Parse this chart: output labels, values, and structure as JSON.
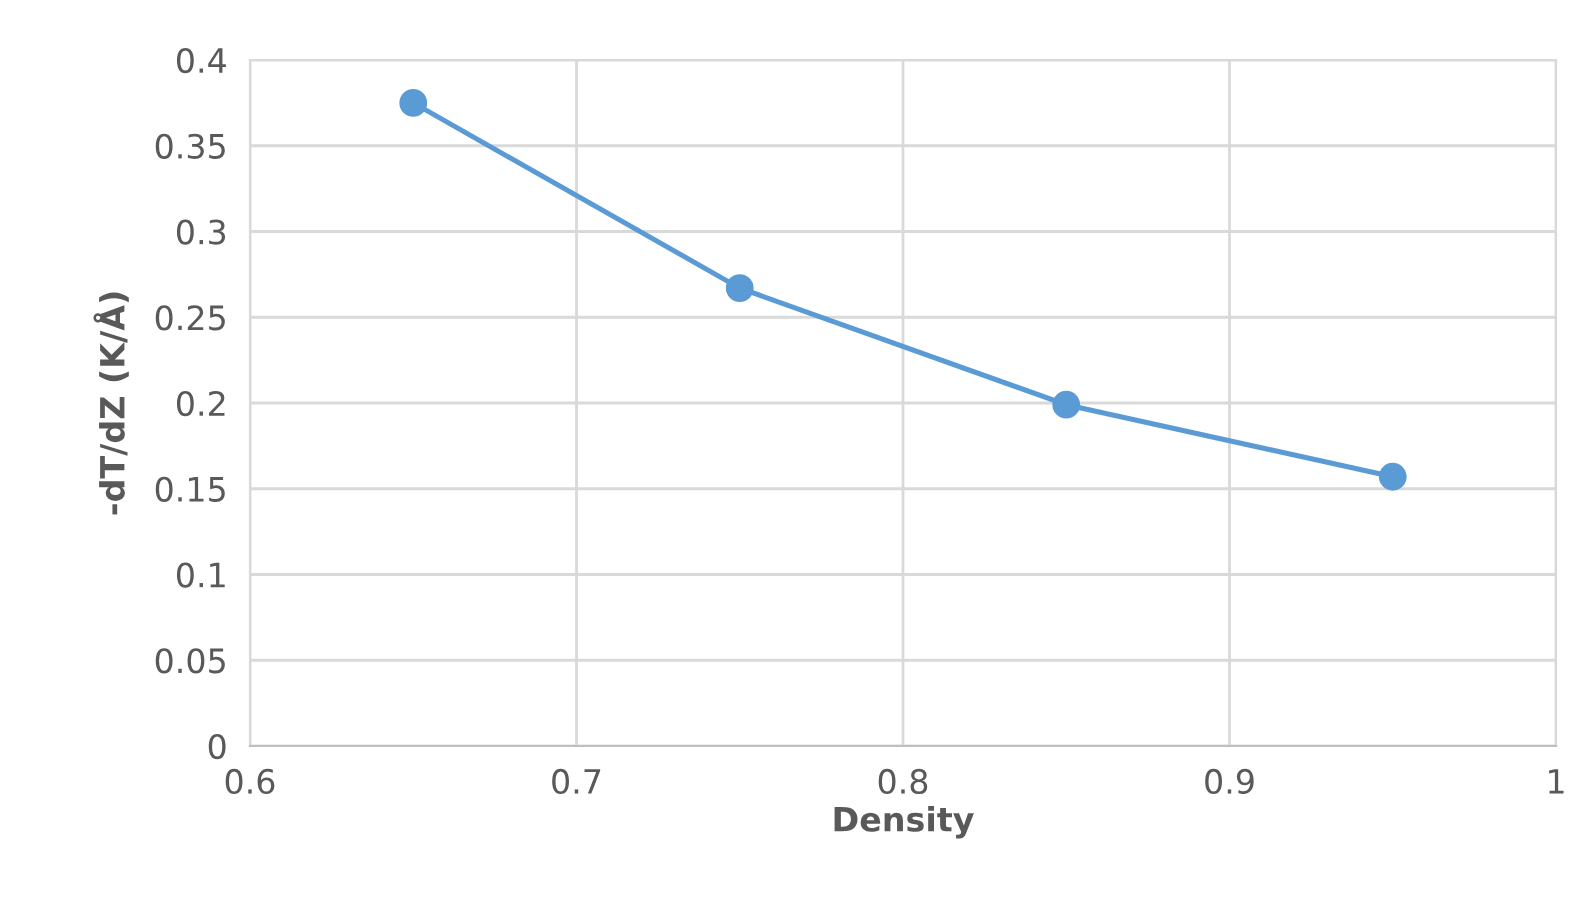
{
  "chart_data": {
    "type": "line",
    "xlabel": "Density",
    "ylabel": "-dT/dZ (K/Å)",
    "x": [
      0.65,
      0.75,
      0.85,
      0.95
    ],
    "series": [
      {
        "color": "#5b9bd5",
        "values": [
          0.375,
          0.267,
          0.199,
          0.157
        ]
      }
    ],
    "xlim": [
      0.6,
      1
    ],
    "xticks": [
      0.6,
      0.7,
      0.8,
      0.9,
      1
    ],
    "ylim": [
      0,
      0.4
    ],
    "yticks": [
      0,
      0.05,
      0.1,
      0.15,
      0.2,
      0.25,
      0.3,
      0.35,
      0.4
    ],
    "grid": true,
    "marker": "circle",
    "line_style": "solid"
  }
}
